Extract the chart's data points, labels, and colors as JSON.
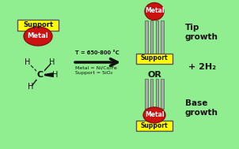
{
  "bg_color": "#90EE90",
  "border_color": "#444444",
  "support_color": "#FFFF00",
  "support_edge_color": "#555555",
  "metal_color": "#CC1111",
  "metal_edge_color": "#881111",
  "nanotube_fill": "#AAAAAA",
  "nanotube_edge": "#555555",
  "arrow_color": "#111111",
  "text_color": "#111111",
  "temp_text": "T = 650-800 °C",
  "metal_text": "Metal = Ni/Co/Fe",
  "support_text": "Support = SiO₂",
  "tip_growth_text": "Tip\ngrowth",
  "base_growth_text": "Base\ngrowth",
  "or_text": "OR",
  "h2_text": "+ 2H₂",
  "support_label": "Support",
  "metal_label": "Metal"
}
